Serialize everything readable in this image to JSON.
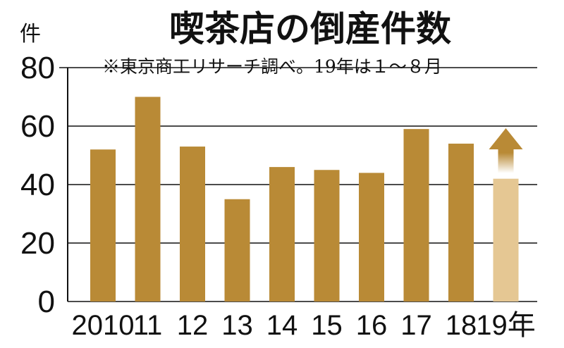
{
  "chart_data": {
    "type": "bar",
    "title": "喫茶店の倒産件数",
    "note": "※東京商工リサーチ調べ。19年は１～８月",
    "y_unit": "件",
    "categories": [
      "2010",
      "11",
      "12",
      "13",
      "14",
      "15",
      "16",
      "17",
      "18",
      "19年"
    ],
    "values": [
      52,
      70,
      53,
      35,
      46,
      45,
      44,
      59,
      54,
      42
    ],
    "ylim": [
      0,
      80
    ],
    "yticks": [
      "0",
      "20",
      "40",
      "60",
      "80"
    ],
    "grid": true,
    "highlight_last": true,
    "colors": {
      "bar": "#b98a36",
      "bar_partial": "#e5c793",
      "arrow": "#b98a36",
      "grid": "#111111"
    }
  }
}
